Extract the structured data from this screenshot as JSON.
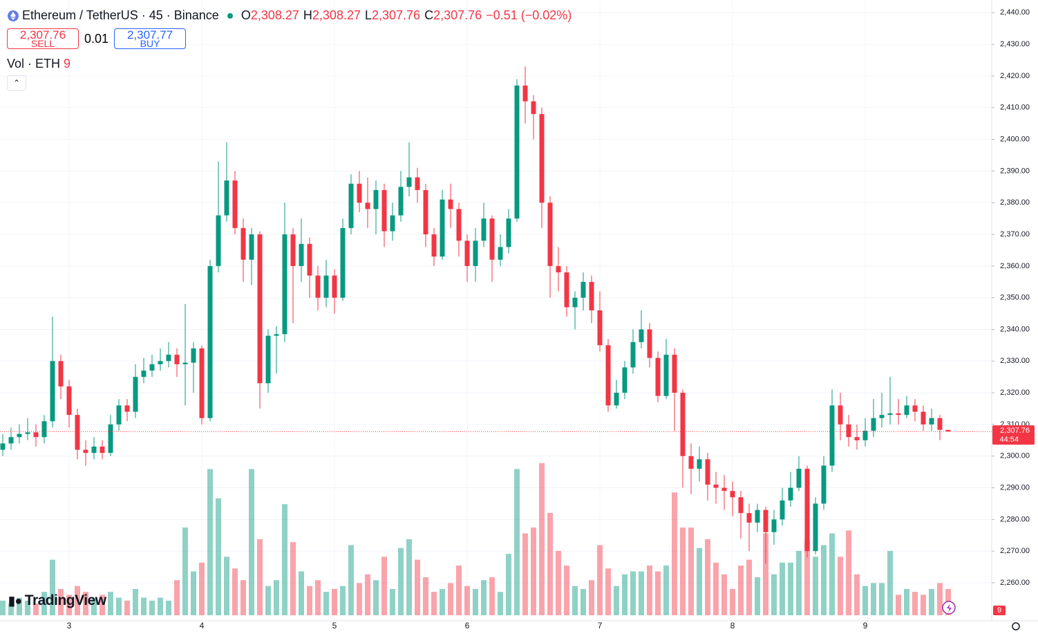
{
  "chart_data": {
    "type": "candlestick",
    "title": "Ethereum / TetherUS · 45 · Binance",
    "ohlc_legend": [
      {
        "key": "O",
        "value": "2,308.27"
      },
      {
        "key": "H",
        "value": "2,308.27"
      },
      {
        "key": "L",
        "value": "2,307.76"
      },
      {
        "key": "C",
        "value": "2,307.76"
      }
    ],
    "change": "−0.51 (−0.02%)",
    "sell": {
      "price": "2,307.76",
      "label": "SELL"
    },
    "spread": "0.01",
    "buy": {
      "price": "2,307.77",
      "label": "BUY"
    },
    "volume_legend": {
      "name": "Vol · ETH",
      "value": "9"
    },
    "logo": "TradingView",
    "up_color": "#089981",
    "down_color": "#f23645",
    "grid": true,
    "categories": [
      null,
      null,
      null,
      null,
      null,
      null,
      null,
      null,
      "3",
      null,
      null,
      null,
      null,
      null,
      null,
      null,
      null,
      null,
      null,
      null,
      null,
      null,
      null,
      null,
      "4",
      null,
      null,
      null,
      null,
      null,
      null,
      null,
      null,
      null,
      null,
      null,
      null,
      null,
      null,
      null,
      "5",
      null,
      null,
      null,
      null,
      null,
      null,
      null,
      null,
      null,
      null,
      null,
      null,
      null,
      null,
      null,
      "6",
      null,
      null,
      null,
      null,
      null,
      null,
      null,
      null,
      null,
      null,
      null,
      null,
      null,
      null,
      null,
      "7",
      null,
      null,
      null,
      null,
      null,
      null,
      null,
      null,
      null,
      null,
      null,
      null,
      null,
      null,
      null,
      "8",
      null,
      null,
      null,
      null,
      null,
      null,
      null,
      null,
      null,
      null,
      null,
      null,
      null,
      null,
      null,
      "9",
      null,
      null,
      null,
      null,
      null,
      null,
      null,
      null,
      null,
      null
    ],
    "open": [
      2302,
      2304,
      2306,
      2307,
      2307.5,
      2306,
      2311,
      2330,
      2322,
      2313,
      2302,
      2301,
      2303,
      2301,
      2310,
      2316,
      2314,
      2325,
      2327,
      2329,
      2330,
      2332,
      2329,
      2329.5,
      2334,
      2312,
      2360,
      2376,
      2387,
      2372,
      2362,
      2370,
      2323,
      2338,
      2338.5,
      2370,
      2360,
      2367,
      2357,
      2350,
      2357,
      2350,
      2372,
      2386,
      2380,
      2378,
      2384,
      2371,
      2376,
      2385,
      2388,
      2384,
      2370,
      2363,
      2381,
      2378,
      2368,
      2360,
      2368,
      2375,
      2362,
      2366,
      2375,
      2417,
      2412,
      2408,
      2380,
      2360,
      2358,
      2347,
      2350,
      2355,
      2346,
      2335,
      2316,
      2320,
      2328,
      2336,
      2340,
      2331,
      2319,
      2332,
      2320,
      2300,
      2296,
      2299,
      2291,
      2290,
      2289,
      2287,
      2282,
      2279,
      2283,
      2276,
      2280,
      2286,
      2290,
      2296,
      2270,
      2285,
      2297,
      2316,
      2310,
      2306,
      2305,
      2308,
      2312,
      2313,
      2313.5,
      2313,
      2316,
      2314,
      2310,
      2312,
      2308.27
    ],
    "high": [
      2307,
      2309,
      2310,
      2312,
      2310,
      2313,
      2344,
      2332,
      2324,
      2315,
      2305,
      2306,
      2305,
      2313,
      2318,
      2318,
      2329,
      2331,
      2332,
      2334,
      2336,
      2334,
      2348,
      2336,
      2335,
      2362,
      2393,
      2399,
      2390,
      2375,
      2372,
      2371,
      2340,
      2341,
      2380,
      2372,
      2375,
      2369,
      2360,
      2362,
      2359,
      2375,
      2389,
      2390,
      2388,
      2387,
      2386,
      2380,
      2390,
      2399,
      2391,
      2386,
      2372,
      2384,
      2386,
      2380,
      2370,
      2372,
      2380,
      2376,
      2370,
      2378,
      2419,
      2423,
      2414,
      2410,
      2382,
      2366,
      2360,
      2352,
      2358,
      2357,
      2352,
      2337,
      2324,
      2330,
      2340,
      2346,
      2342,
      2333,
      2337,
      2334,
      2321,
      2304,
      2303,
      2301,
      2295,
      2294,
      2292,
      2289,
      2285,
      2285,
      2284,
      2283,
      2290,
      2295,
      2300,
      2297,
      2287,
      2300,
      2321,
      2320,
      2313,
      2310,
      2312,
      2318,
      2320,
      2325,
      2318,
      2319,
      2318,
      2316,
      2315,
      2313,
      2308.27
    ],
    "low": [
      2300,
      2302,
      2304,
      2305,
      2303,
      2304,
      2309,
      2318,
      2309,
      2299,
      2297,
      2299,
      2299,
      2300,
      2308,
      2311,
      2312,
      2323,
      2325,
      2327,
      2328,
      2325,
      2316,
      2320,
      2310,
      2311,
      2358,
      2374,
      2370,
      2355,
      2354,
      2315,
      2320,
      2326,
      2336,
      2342,
      2355,
      2350,
      2346,
      2347,
      2345,
      2349,
      2370,
      2377,
      2372,
      2370,
      2366,
      2368,
      2374,
      2382,
      2380,
      2366,
      2360,
      2362,
      2372,
      2363,
      2355,
      2355,
      2366,
      2355,
      2360,
      2364,
      2374,
      2405,
      2400,
      2372,
      2350,
      2352,
      2344,
      2340,
      2346,
      2342,
      2333,
      2314,
      2315,
      2318,
      2326,
      2334,
      2328,
      2317,
      2318,
      2308,
      2290,
      2288,
      2292,
      2286,
      2285,
      2283,
      2281,
      2274,
      2270,
      2276,
      2266,
      2272,
      2278,
      2284,
      2289,
      2268,
      2269,
      2283,
      2295,
      2305,
      2303,
      2302,
      2303,
      2306,
      2309,
      2310,
      2310,
      2312,
      2311,
      2308,
      2308,
      2305,
      2307.76
    ],
    "close": [
      2304,
      2306,
      2307,
      2307.5,
      2306,
      2311,
      2330,
      2322,
      2313,
      2302,
      2301,
      2303,
      2301,
      2310,
      2316,
      2314,
      2325,
      2327,
      2329,
      2330,
      2332,
      2329,
      2329.5,
      2334,
      2312,
      2360,
      2376,
      2387,
      2372,
      2362,
      2370,
      2323,
      2338,
      2338.5,
      2370,
      2360,
      2367,
      2357,
      2350,
      2357,
      2350,
      2372,
      2386,
      2380,
      2378,
      2384,
      2371,
      2376,
      2385,
      2388,
      2384,
      2370,
      2363,
      2381,
      2378,
      2368,
      2360,
      2368,
      2375,
      2362,
      2366,
      2375,
      2417,
      2412,
      2408,
      2380,
      2360,
      2358,
      2347,
      2350,
      2355,
      2346,
      2335,
      2316,
      2320,
      2328,
      2336,
      2340,
      2331,
      2319,
      2332,
      2320,
      2300,
      2296,
      2299,
      2291,
      2290,
      2289,
      2287,
      2282,
      2279,
      2283,
      2276,
      2280,
      2286,
      2290,
      2296,
      2270,
      2285,
      2297,
      2316,
      2310,
      2306,
      2305,
      2308,
      2312,
      2313,
      2313.5,
      2313,
      2316,
      2314,
      2310,
      2312,
      2308.3,
      2307.76
    ],
    "volume": [
      5,
      4,
      6,
      5,
      4,
      8,
      19,
      9,
      7,
      10,
      8,
      6,
      7,
      8,
      6,
      5,
      9,
      6,
      5,
      6,
      5,
      12,
      30,
      15,
      18,
      50,
      40,
      20,
      16,
      12,
      50,
      26,
      10,
      12,
      38,
      25,
      15,
      10,
      12,
      8,
      9,
      10,
      24,
      11,
      14,
      12,
      20,
      9,
      23,
      26,
      19,
      13,
      8,
      9,
      11,
      17,
      10,
      9,
      12,
      13,
      8,
      21,
      50,
      28,
      30,
      52,
      35,
      22,
      17,
      10,
      9,
      12,
      24,
      16,
      10,
      14,
      15,
      15,
      17,
      15,
      17,
      42,
      30,
      30,
      23,
      26,
      18,
      14,
      9,
      17,
      19,
      13,
      28,
      14,
      18,
      18,
      22,
      26,
      20,
      24,
      28,
      20,
      29,
      14,
      10,
      11,
      11,
      22,
      7,
      9,
      8,
      7,
      9,
      11,
      9
    ],
    "ylim": [
      2248,
      2444
    ],
    "yticks": [
      {
        "value": 2260,
        "label": "2,260.00"
      },
      {
        "value": 2270,
        "label": "2,270.00"
      },
      {
        "value": 2280,
        "label": "2,280.00"
      },
      {
        "value": 2290,
        "label": "2,290.00"
      },
      {
        "value": 2300,
        "label": "2,300.00"
      },
      {
        "value": 2310,
        "label": "2,310.00"
      },
      {
        "value": 2320,
        "label": "2,320.00"
      },
      {
        "value": 2330,
        "label": "2,330.00"
      },
      {
        "value": 2340,
        "label": "2,340.00"
      },
      {
        "value": 2350,
        "label": "2,350.00"
      },
      {
        "value": 2360,
        "label": "2,360.00"
      },
      {
        "value": 2370,
        "label": "2,370.00"
      },
      {
        "value": 2380,
        "label": "2,380.00"
      },
      {
        "value": 2390,
        "label": "2,390.00"
      },
      {
        "value": 2400,
        "label": "2,400.00"
      },
      {
        "value": 2410,
        "label": "2,410.00"
      },
      {
        "value": 2420,
        "label": "2,420.00"
      },
      {
        "value": 2430,
        "label": "2,430.00"
      },
      {
        "value": 2440,
        "label": "2,440.00"
      }
    ],
    "last_price": {
      "value": 2307.76,
      "label": "2,307.76",
      "countdown": "44:54"
    }
  }
}
